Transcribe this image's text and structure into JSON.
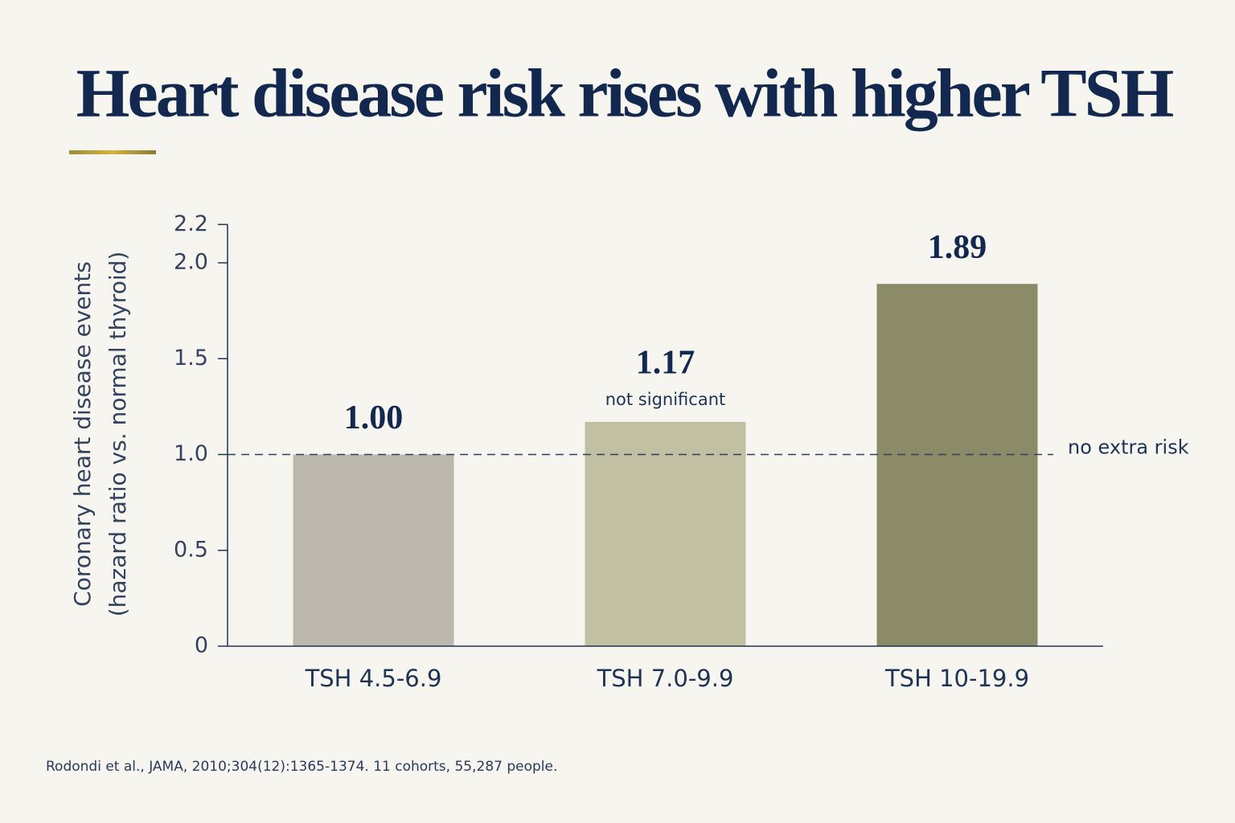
{
  "chart_data": {
    "type": "bar",
    "title": "Heart disease risk rises with higher TSH",
    "y_label": [
      "Coronary heart disease events",
      "(hazard ratio vs. normal thyroid)"
    ],
    "categories": [
      "TSH 4.5-6.9",
      "TSH 7.0-9.9",
      "TSH 10-19.9"
    ],
    "values": [
      1.0,
      1.17,
      1.89
    ],
    "value_labels": [
      "1.00",
      "1.17",
      "1.89"
    ],
    "annotations": [
      null,
      "not significant",
      null
    ],
    "colors": [
      "#bcb8ae",
      "#c2c0a2",
      "#8b8b68"
    ],
    "ylim": [
      0,
      2.2
    ],
    "yticks": [
      0,
      0.5,
      {
        "value": 1,
        "label": "1.0"
      },
      1.5,
      {
        "value": 2,
        "label": "2.0"
      },
      2.2
    ],
    "reference_line": {
      "value": 1,
      "label": "no extra risk"
    },
    "source": "Rodondi et al., JAMA, 2010;304(12):1365-1374. 11 cohorts, 55,287 people."
  }
}
